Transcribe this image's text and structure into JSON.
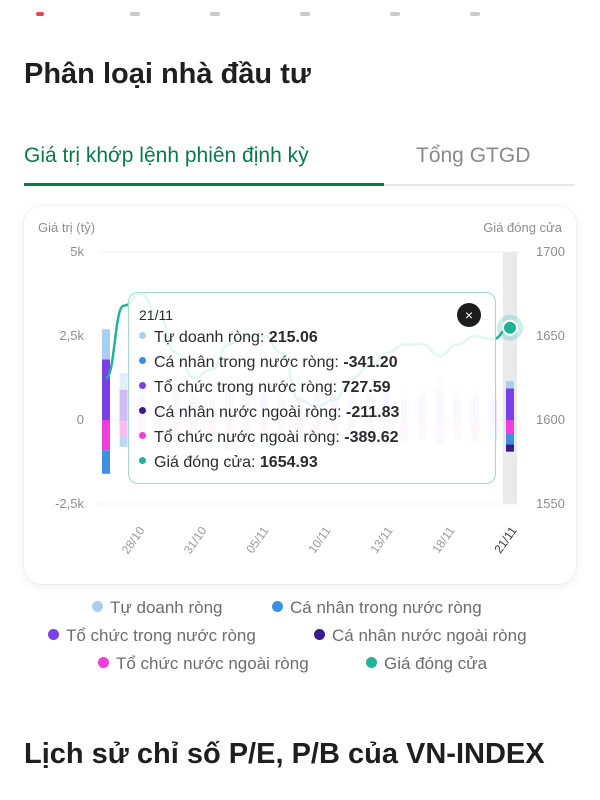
{
  "section_title": "Phân loại nhà đầu tư",
  "tabs": [
    {
      "label": "Giá trị khớp lệnh phiên định kỳ",
      "active": true
    },
    {
      "label": "Tổng GTGD",
      "active": false
    }
  ],
  "colors": {
    "accent": "#0b7a4b",
    "tu_doanh": "#a8d0ee",
    "ca_nhan_trong_nuoc": "#3d8fe0",
    "to_chuc_trong_nuoc": "#7b3fe6",
    "ca_nhan_nuoc_ngoai": "#3c1a8a",
    "to_chuc_nuoc_ngoai": "#f03ddc",
    "gia_dong_cua": "#20b39a"
  },
  "chart_data": {
    "type": "bar",
    "ylabel_left": "Giá trị (tỷ)",
    "ylabel_right": "Giá đóng cửa",
    "y_left_ticks": [
      "5k",
      "2,5k",
      "0",
      "-2,5k"
    ],
    "y_right_ticks": [
      "1700",
      "1650",
      "1600",
      "1550"
    ],
    "ylim_left": [
      -2500,
      5000
    ],
    "ylim_right": [
      1550,
      1700
    ],
    "x_tick_labels": [
      "28/10",
      "31/10",
      "05/11",
      "10/11",
      "13/11",
      "18/11",
      "21/11"
    ],
    "legend": [
      {
        "name": "Tự doanh ròng",
        "color_key": "tu_doanh"
      },
      {
        "name": "Cá nhân trong nước ròng",
        "color_key": "ca_nhan_trong_nuoc"
      },
      {
        "name": "Tổ chức trong nước ròng",
        "color_key": "to_chuc_trong_nuoc"
      },
      {
        "name": "Cá nhân nước ngoài ròng",
        "color_key": "ca_nhan_nuoc_ngoai"
      },
      {
        "name": "Tổ chức nước ngoài ròng",
        "color_key": "to_chuc_nuoc_ngoai"
      },
      {
        "name": "Giá đóng cửa",
        "color_key": "gia_dong_cua"
      }
    ],
    "days": [
      {
        "pos": [
          1800,
          900
        ],
        "neg": [
          -900,
          -700
        ],
        "close": 1625
      },
      {
        "pos": [
          900,
          500
        ],
        "neg": [
          -500,
          -300
        ],
        "close": 1668
      },
      {
        "pos": [
          700,
          400
        ],
        "neg": [
          -400,
          -250
        ],
        "close": 1675
      },
      {
        "pos": [
          600,
          500
        ],
        "neg": [
          -500,
          -300
        ],
        "close": 1662
      },
      {
        "pos": [
          800,
          400
        ],
        "neg": [
          -400,
          -300
        ],
        "close": 1640
      },
      {
        "pos": [
          700,
          300
        ],
        "neg": [
          -350,
          -250
        ],
        "close": 1625
      },
      {
        "pos": [
          600,
          500
        ],
        "neg": [
          -450,
          -300
        ],
        "close": 1630
      },
      {
        "pos": [
          900,
          400
        ],
        "neg": [
          -500,
          -400
        ],
        "close": 1645
      },
      {
        "pos": [
          700,
          400
        ],
        "neg": [
          -400,
          -300
        ],
        "close": 1650
      },
      {
        "pos": [
          800,
          300
        ],
        "neg": [
          -450,
          -300
        ],
        "close": 1650
      },
      {
        "pos": [
          600,
          500
        ],
        "neg": [
          -500,
          -400
        ],
        "close": 1640
      },
      {
        "pos": [
          700,
          400
        ],
        "neg": [
          -400,
          -300
        ],
        "close": 1612
      },
      {
        "pos": [
          800,
          400
        ],
        "neg": [
          -450,
          -300
        ],
        "close": 1608
      },
      {
        "pos": [
          700,
          300
        ],
        "neg": [
          -400,
          -300
        ],
        "close": 1612
      },
      {
        "pos": [
          600,
          400
        ],
        "neg": [
          -350,
          -250
        ],
        "close": 1625
      },
      {
        "pos": [
          700,
          400
        ],
        "neg": [
          -400,
          -300
        ],
        "close": 1632
      },
      {
        "pos": [
          800,
          300
        ],
        "neg": [
          -450,
          -300
        ],
        "close": 1640
      },
      {
        "pos": [
          600,
          500
        ],
        "neg": [
          -400,
          -300
        ],
        "close": 1645
      },
      {
        "pos": [
          700,
          300
        ],
        "neg": [
          -350,
          -250
        ],
        "close": 1645
      },
      {
        "pos": [
          900,
          400
        ],
        "neg": [
          -400,
          -300
        ],
        "close": 1638
      },
      {
        "pos": [
          600,
          400
        ],
        "neg": [
          -350,
          -250
        ],
        "close": 1645
      },
      {
        "pos": [
          700,
          300
        ],
        "neg": [
          -400,
          -300
        ],
        "close": 1650
      },
      {
        "pos": [
          600,
          400
        ],
        "neg": [
          -350,
          -250
        ],
        "close": 1648
      },
      {
        "pos": [
          943,
          215
        ],
        "neg": [
          -389,
          -341,
          -212
        ],
        "close": 1654.93
      }
    ]
  },
  "tooltip": {
    "date": "21/11",
    "close_label": "×",
    "rows": [
      {
        "label": "Tự doanh ròng:",
        "value": "215.06",
        "color_key": "tu_doanh"
      },
      {
        "label": "Cá nhân trong nước ròng:",
        "value": "-341.20",
        "color_key": "ca_nhan_trong_nuoc"
      },
      {
        "label": "Tổ chức trong nước ròng:",
        "value": "727.59",
        "color_key": "to_chuc_trong_nuoc"
      },
      {
        "label": "Cá nhân nước ngoài ròng:",
        "value": "-211.83",
        "color_key": "ca_nhan_nuoc_ngoai"
      },
      {
        "label": "Tổ chức nước ngoài ròng:",
        "value": "-389.62",
        "color_key": "to_chuc_nuoc_ngoai"
      },
      {
        "label": "Giá đóng cửa:",
        "value": "1654.93",
        "color_key": "gia_dong_cua"
      }
    ]
  },
  "next_section_title": "Lịch sử chỉ số P/E, P/B của VN-INDEX"
}
